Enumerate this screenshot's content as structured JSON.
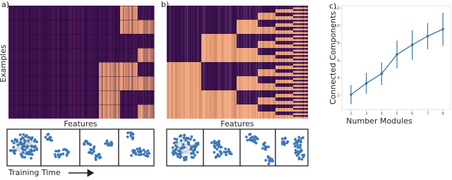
{
  "panels": {
    "a": {
      "label": "a)",
      "y_label": "Examples",
      "x_label": "Features",
      "caption": "Training Time"
    },
    "b": {
      "label": "b)",
      "x_label": "Features"
    }
  },
  "chart_data": {
    "type": "line",
    "label": "c)",
    "x_label": "Number Modules",
    "y_label": "Connected Components",
    "x": [
      2,
      3,
      4,
      5,
      6,
      7,
      8
    ],
    "series": [
      {
        "name": "Connected Components",
        "color": "#3a75a8",
        "values": [
          2.1,
          3.4,
          4.5,
          6.7,
          7.8,
          8.8,
          9.6
        ],
        "errors": [
          1.1,
          1.2,
          1.3,
          1.6,
          1.7,
          1.5,
          1.9
        ]
      }
    ],
    "xlim": [
      1.4,
      8.5
    ],
    "xticks": [
      2,
      3,
      4,
      5,
      6,
      7,
      8
    ],
    "ylim": [
      0.4,
      12.3
    ],
    "yticks": [
      2,
      4,
      6,
      8,
      10,
      12
    ]
  }
}
